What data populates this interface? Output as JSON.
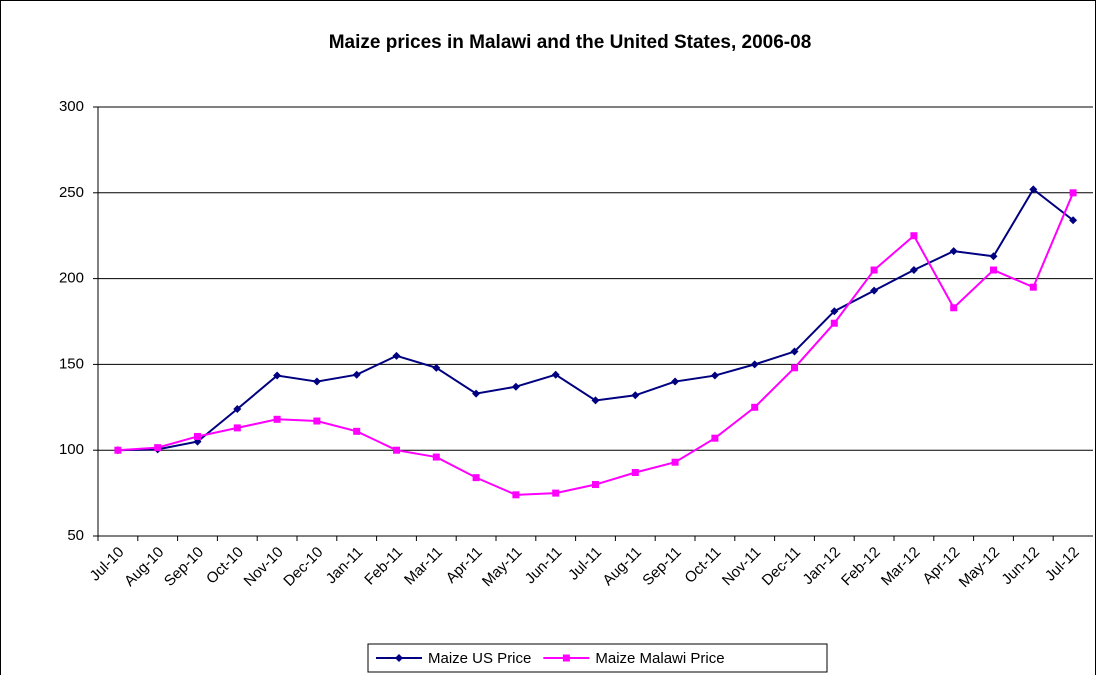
{
  "chart_data": {
    "type": "line",
    "title": "Maize prices in Malawi and the United States, 2006-08",
    "categories": [
      "Jul-10",
      "Aug-10",
      "Sep-10",
      "Oct-10",
      "Nov-10",
      "Dec-10",
      "Jan-11",
      "Feb-11",
      "Mar-11",
      "Apr-11",
      "May-11",
      "Jun-11",
      "Jul-11",
      "Aug-11",
      "Sep-11",
      "Oct-11",
      "Nov-11",
      "Dec-11",
      "Jan-12",
      "Feb-12",
      "Mar-12",
      "Apr-12",
      "May-12",
      "Jun-12",
      "Jul-12"
    ],
    "series": [
      {
        "name": "Maize US Price",
        "color": "#000080",
        "marker": "diamond",
        "values": [
          100,
          100.5,
          105,
          124,
          143.5,
          140,
          144,
          155,
          148,
          133,
          137,
          144,
          129,
          132,
          140,
          143.5,
          150,
          157.5,
          181,
          193,
          205,
          216,
          213,
          252,
          234
        ]
      },
      {
        "name": "Maize Malawi Price",
        "color": "#ff00ff",
        "marker": "square",
        "values": [
          100,
          101.5,
          108,
          113,
          118,
          117,
          111,
          100,
          96,
          84,
          74,
          75,
          80,
          87,
          93,
          107,
          125,
          148,
          174,
          205,
          225,
          183,
          205,
          195,
          250
        ]
      }
    ],
    "ylim": [
      50,
      300
    ],
    "yticks": [
      50,
      100,
      150,
      200,
      250,
      300
    ],
    "grid": true,
    "legend": "bottom"
  }
}
